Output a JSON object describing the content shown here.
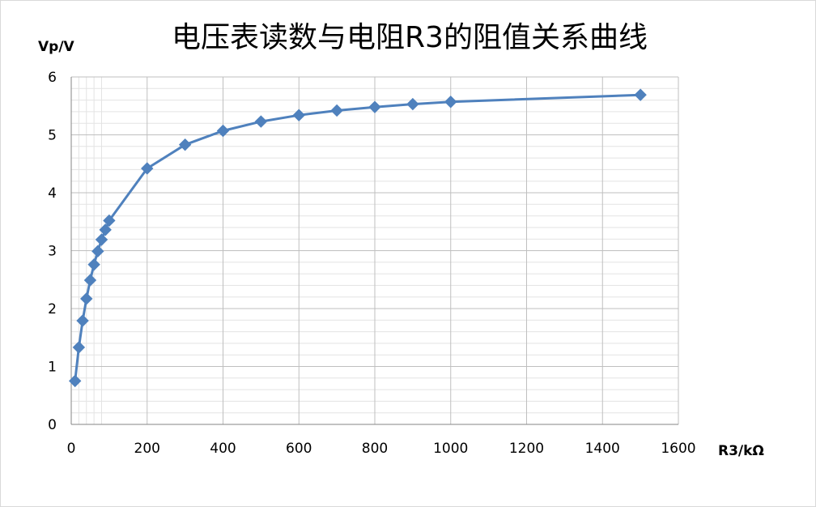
{
  "chart_data": {
    "type": "line",
    "title": "电压表读数与电阻R3的阻值关系曲线",
    "xlabel": "R3/kΩ",
    "ylabel": "Vp/V",
    "xlim": [
      0,
      1600
    ],
    "ylim": [
      0,
      6
    ],
    "xticks": [
      0,
      200,
      400,
      600,
      800,
      1000,
      1200,
      1400,
      1600
    ],
    "yticks": [
      0,
      1,
      2,
      3,
      4,
      5,
      6
    ],
    "grid": true,
    "legend": "none",
    "line_color": "#4F81BD",
    "grid_color": "#BFBFBF",
    "minor_grid_color": "#E3E3E3",
    "marker": "diamond",
    "series": [
      {
        "x": [
          10,
          20,
          30,
          40,
          50,
          60,
          70,
          80,
          90,
          100,
          200,
          300,
          400,
          500,
          600,
          700,
          800,
          900,
          1000,
          1500
        ],
        "y": [
          0.75,
          1.33,
          1.79,
          2.17,
          2.49,
          2.76,
          2.99,
          3.19,
          3.36,
          3.52,
          4.42,
          4.83,
          5.07,
          5.23,
          5.34,
          5.42,
          5.48,
          5.53,
          5.57,
          5.69
        ]
      }
    ]
  }
}
